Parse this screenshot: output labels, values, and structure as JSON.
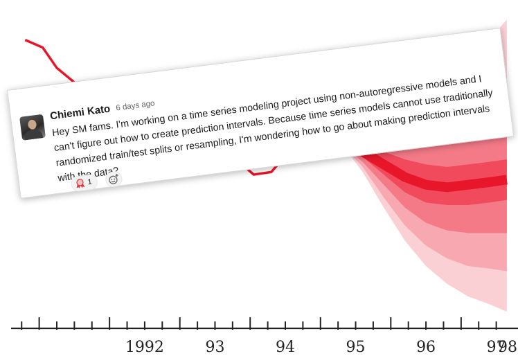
{
  "chart_data": {
    "type": "line",
    "series": [
      {
        "x": [
          1990.8,
          1991.05,
          1991.25,
          1991.6,
          1992.0,
          1992.45,
          1992.8,
          1993.05,
          1993.3,
          1993.55,
          1993.8,
          1994.05,
          1994.3,
          1994.55,
          1994.8,
          1995.05,
          1995.3
        ],
        "values": [
          10.7,
          10.4,
          9.6,
          8.8,
          8.2,
          7.7,
          7.3,
          6.6,
          6.5,
          6.8,
          6.0,
          5.4,
          5.5,
          6.3,
          6.2,
          6.6,
          6.6
        ]
      }
    ],
    "fan": {
      "x": [
        1995.3,
        1995.6,
        1995.9,
        1996.2,
        1996.5,
        1996.8,
        1997.1,
        1997.4,
        1997.65
      ],
      "median": [
        6.6,
        6.3,
        5.8,
        5.3,
        5.0,
        4.9,
        5.0,
        5.1,
        5.2
      ],
      "bands": [
        {
          "upper": [
            6.6,
            6.5,
            6.3,
            6.0,
            5.8,
            5.7,
            5.8,
            5.9,
            6.0
          ],
          "lower": [
            6.6,
            6.1,
            5.4,
            4.7,
            4.3,
            4.2,
            4.2,
            4.3,
            4.4
          ]
        },
        {
          "upper": [
            6.6,
            6.7,
            6.8,
            6.8,
            6.8,
            6.9,
            7.1,
            7.3,
            7.5
          ],
          "lower": [
            6.6,
            5.9,
            5.0,
            4.1,
            3.5,
            3.2,
            3.1,
            3.1,
            3.1
          ]
        },
        {
          "upper": [
            6.6,
            6.9,
            7.3,
            7.6,
            7.9,
            8.2,
            8.5,
            8.9,
            9.3
          ],
          "lower": [
            6.6,
            5.7,
            4.5,
            3.4,
            2.6,
            2.1,
            1.8,
            1.7,
            1.6
          ]
        },
        {
          "upper": [
            6.6,
            7.1,
            7.8,
            8.4,
            9.0,
            9.6,
            10.1,
            10.7,
            11.5
          ],
          "lower": [
            6.6,
            5.5,
            4.1,
            2.8,
            1.8,
            1.1,
            0.6,
            0.3,
            0.0
          ]
        }
      ]
    },
    "xlim": [
      1990.6,
      1997.75
    ],
    "ylim": [
      0,
      12
    ],
    "x_tick_labels": [
      {
        "x": 1992.0,
        "label": "1992"
      },
      {
        "x": 1993.0,
        "label": "93"
      },
      {
        "x": 1994.0,
        "label": "94"
      },
      {
        "x": 1995.0,
        "label": "95"
      },
      {
        "x": 1996.0,
        "label": "96"
      },
      {
        "x": 1997.0,
        "label": "97"
      },
      {
        "x": 1997.45,
        "label": "98"
      }
    ],
    "colors": {
      "line": "#e8162b",
      "fan": [
        "#e8162b",
        "#f04a5c",
        "#f47a88",
        "#f8a8b1",
        "#fbd0d5"
      ]
    }
  },
  "message": {
    "author": "Chiemi Kato",
    "time": "6 days ago",
    "text": "Hey SM fams. I'm working on a time series modeling project using non-autoregressive models and I can't figure out how to create prediction intervals. Because time series models cannot use traditionally randomized train/test splits or resampling, I'm wondering how to go about making prediction intervals with the data?",
    "reaction_count": "1",
    "reaction_icon": "prize-ribbon-icon",
    "add_reaction_icon": "add-emoji-icon"
  }
}
